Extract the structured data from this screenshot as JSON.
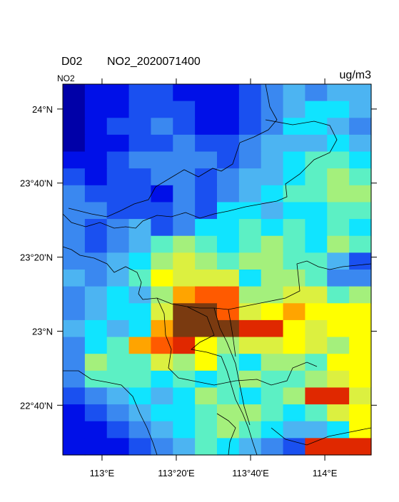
{
  "chart_data": {
    "type": "map",
    "title": "D02",
    "subtitle": "NO2_2020071400",
    "left_label": "NO2",
    "units": "ug/m3",
    "xlim": [
      112.824,
      114.208
    ],
    "ylim": [
      22.443,
      24.112
    ],
    "xticks": [
      {
        "value": 113,
        "label": "113°E"
      },
      {
        "value": 113.3333,
        "label": "113°20'E"
      },
      {
        "value": 113.6667,
        "label": "113°40'E"
      },
      {
        "value": 114,
        "label": "114°E"
      }
    ],
    "yticks": [
      {
        "value": 24,
        "label": "24°N"
      },
      {
        "value": 23.6667,
        "label": "23°40'N"
      },
      {
        "value": 23.3333,
        "label": "23°20'N"
      },
      {
        "value": 23,
        "label": "23°N"
      },
      {
        "value": 22.6667,
        "label": "22°40'N"
      }
    ],
    "palette": {
      "a": "#0000a8",
      "b": "#0010e8",
      "c": "#1a50f0",
      "d": "#3a88f0",
      "e": "#4cb4f2",
      "f": "#10e4ff",
      "g": "#5cf0c4",
      "h": "#a4f07c",
      "i": "#dcf040",
      "j": "#ffff00",
      "k": "#ffa400",
      "l": "#ff5a00",
      "m": "#e02800",
      "n": "#7a3a10"
    },
    "grid_rows": [
      "abbccbbbcdedee",
      "abbcccbbcdeffe",
      "abccdcbbcdffed",
      "abbccdccdeeefe",
      "bbcddddcdefggf",
      "cbccddcdeefghg",
      "dcccbdcdefgghh",
      "ddcccdcffeffgg",
      "dcdecdffgfgfgf",
      "dcdeghgfghgfhg",
      "ddefhihghhggec",
      "edegjiiifhhgdd",
      "defehkllhhiigh",
      "deffinnlijkjjj",
      "efefknnnmmjijj",
      "dfgklmjhiijihj",
      "dhggihjgfhhgjj",
      "dgggfgfghgghij",
      "cdefefhgfghmmi",
      "bcdeffghhgfgij",
      "bbcdefghgfeefj",
      "bbbcdegfedcmmm"
    ]
  }
}
